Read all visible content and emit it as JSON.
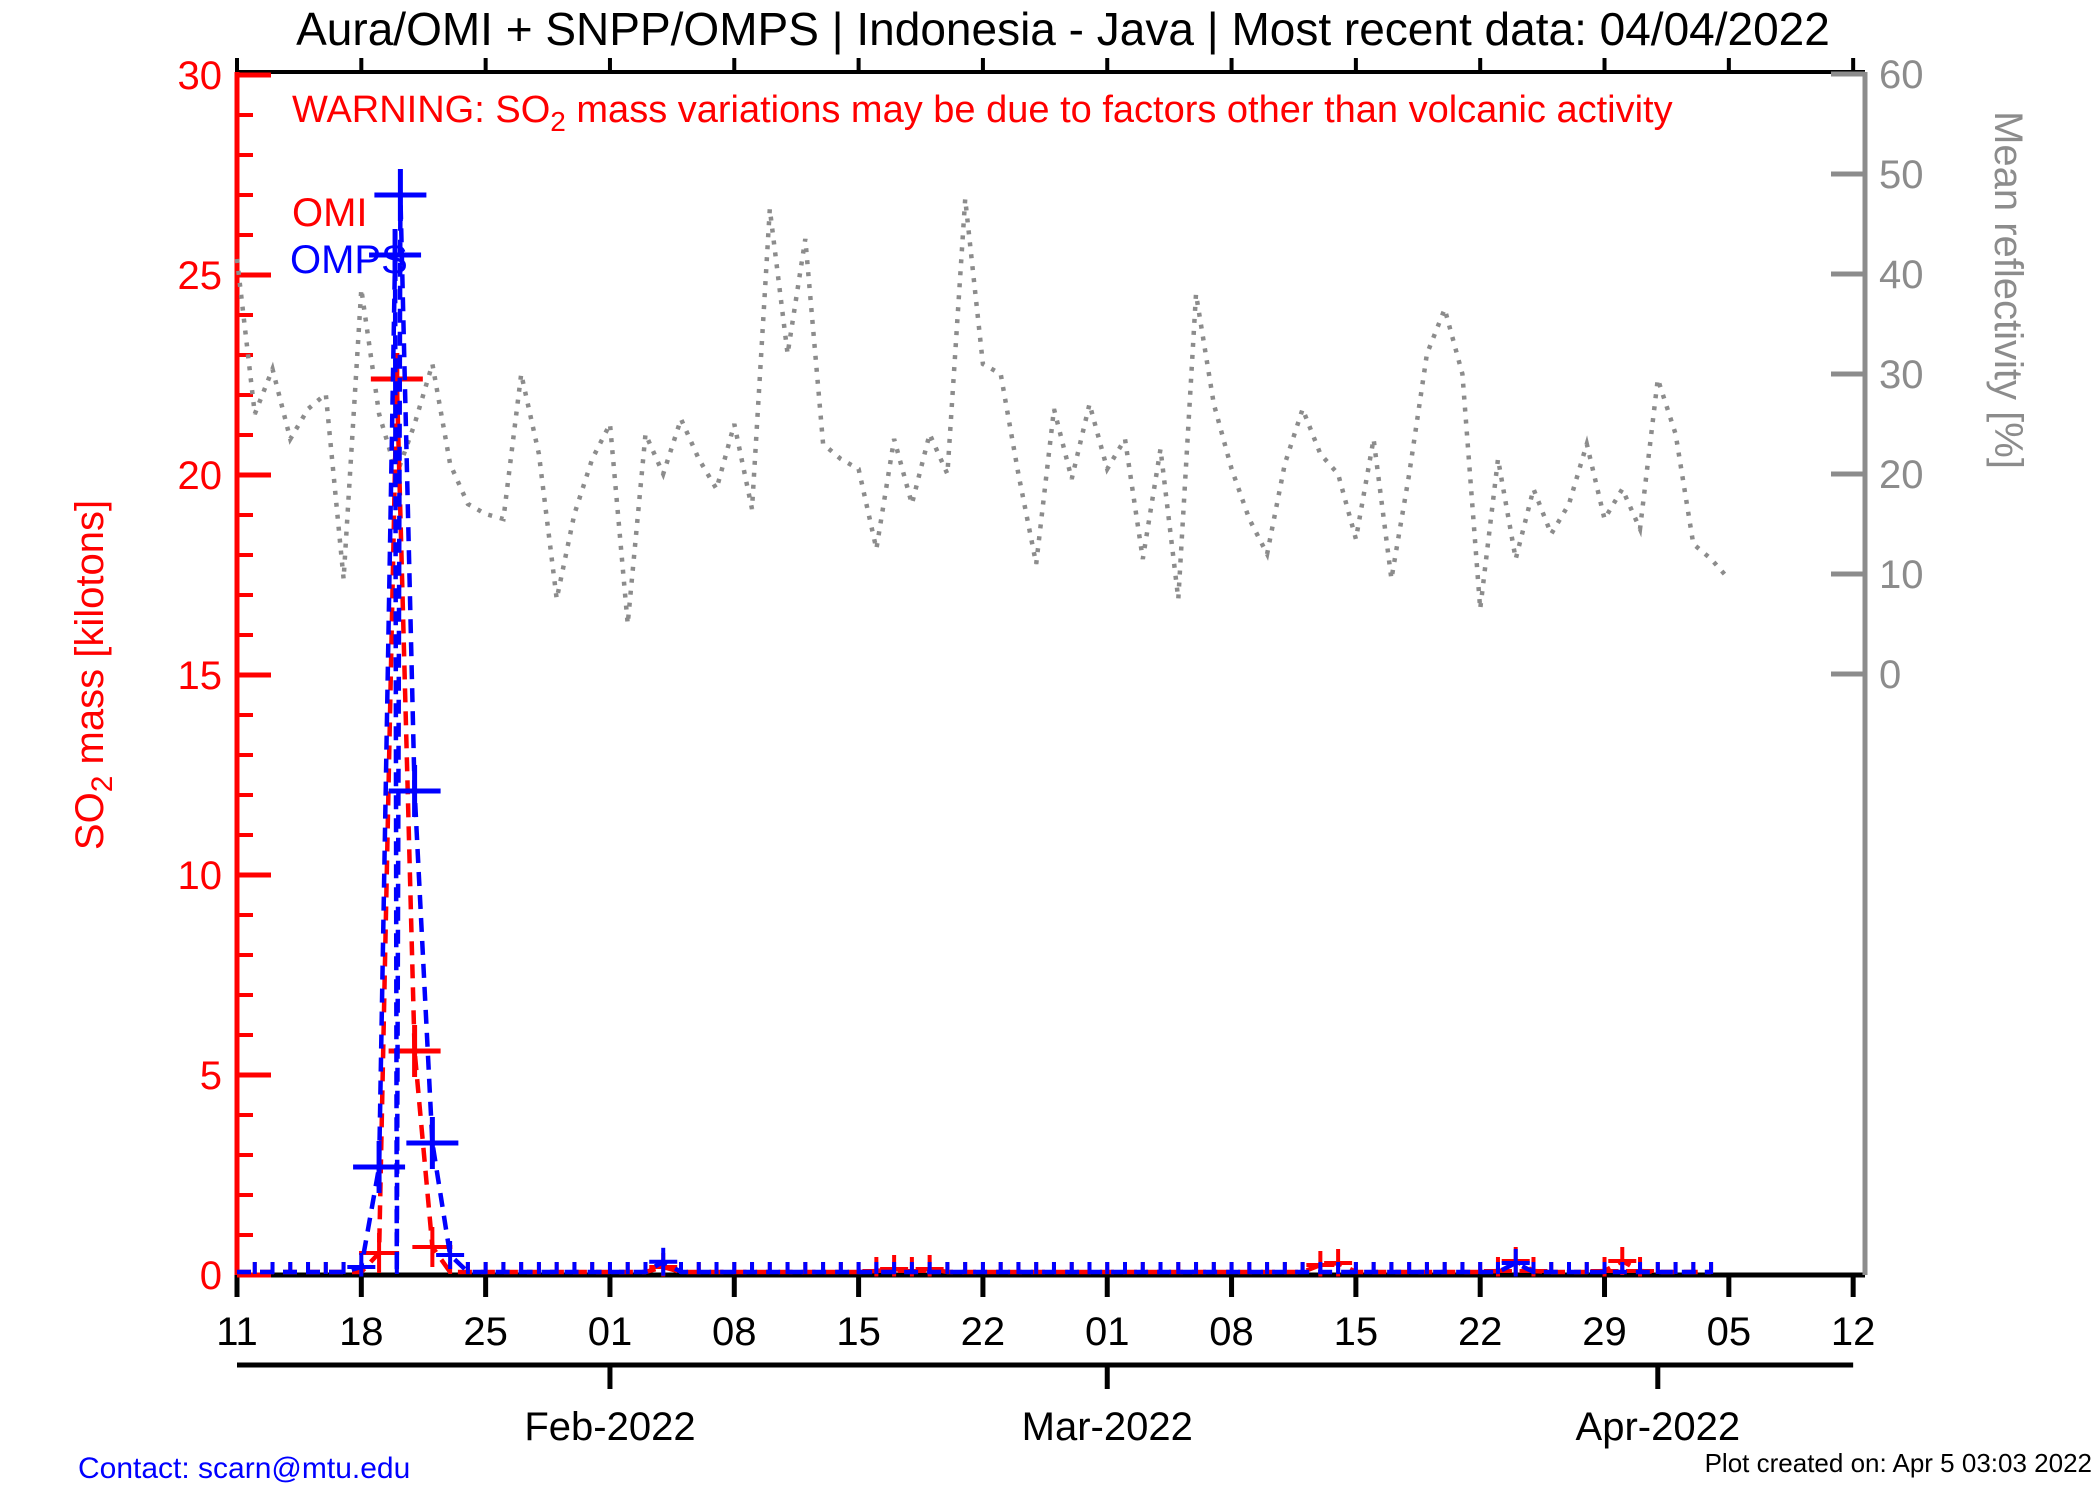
{
  "title": "Aura/OMI + SNPP/OMPS | Indonesia - Java | Most recent data: 04/04/2022",
  "warning": {
    "pre": "WARNING: SO",
    "sub": "2",
    "post": " mass variations may be due to factors other than volcanic activity",
    "color": "#ff0000"
  },
  "legend": {
    "omi_label": "OMI",
    "omps_label": "OMPS",
    "omi_color": "#ff0000",
    "omps_color": "#0000ff"
  },
  "left_axis": {
    "label_pre": "SO",
    "label_sub": "2",
    "label_post": " mass [kilotons]",
    "color": "#ff0000",
    "min": 0,
    "max": 30,
    "major_step": 5,
    "minor_step": 1,
    "tick_labels": [
      "0",
      "5",
      "10",
      "15",
      "20",
      "25",
      "30"
    ]
  },
  "right_axis": {
    "label": "Mean reflectivity [%]",
    "color": "#8c8c8c",
    "min": 0,
    "max": 60,
    "major_step": 10,
    "tick_labels": [
      "0",
      "10",
      "20",
      "30",
      "40",
      "50",
      "60"
    ]
  },
  "x_axis": {
    "weekly_labels": [
      "11",
      "18",
      "25",
      "01",
      "08",
      "15",
      "22",
      "01",
      "08",
      "15",
      "22",
      "29",
      "05",
      "12"
    ],
    "month_labels": [
      "Feb-2022",
      "Mar-2022",
      "Apr-2022"
    ]
  },
  "footer": {
    "contact": "Contact: scarn@mtu.edu",
    "created": "Plot created on: Apr 5 03:03 2022"
  },
  "chart_data": {
    "type": "line",
    "start_date": "2022-01-11",
    "end_date": "2022-04-04",
    "xlim_days": [
      0,
      91
    ],
    "ylim_left_kilotons": [
      0,
      30
    ],
    "ylim_right_percent": [
      0,
      60
    ],
    "grid": false,
    "x_weekly_tick_day_indices": [
      0,
      7,
      14,
      21,
      28,
      35,
      42,
      49,
      56,
      63,
      70,
      77,
      84,
      91
    ],
    "month_tick_day_indices": [
      21,
      49,
      80
    ],
    "series": [
      {
        "name": "Mean reflectivity",
        "unit": "%",
        "axis": "right",
        "style": "dotted",
        "color": "#8c8c8c",
        "daily_values": [
          41.5,
          26,
          30.5,
          23.5,
          26.5,
          28,
          9.5,
          38.5,
          26,
          20,
          25,
          31,
          21,
          17,
          16,
          15.5,
          30,
          22,
          7.5,
          16,
          21.5,
          25,
          5,
          24,
          20,
          25.5,
          21.5,
          18.5,
          25,
          16.5,
          46.5,
          32,
          43.5,
          23,
          21.5,
          20.5,
          12.5,
          23.5,
          17,
          24,
          20,
          47.5,
          31,
          30,
          20,
          11,
          26.5,
          19.5,
          27,
          20.5,
          23.5,
          11.5,
          22.5,
          7.5,
          38,
          27,
          20.5,
          15.5,
          12,
          21,
          26.5,
          22,
          20,
          13.5,
          23.5,
          9.5,
          20,
          32,
          36.5,
          30,
          6.5,
          21.5,
          11.5,
          18.5,
          14,
          17,
          23,
          15.5,
          18.5,
          14.5,
          29.5,
          24,
          13,
          11.5,
          9.5
        ]
      },
      {
        "name": "OMI SO2 mass",
        "unit": "kilotons",
        "axis": "left",
        "style": "dashed",
        "color": "#ff0000",
        "marker": "plus",
        "baseline_value": 0,
        "nonzero_points": [
          {
            "day": 8,
            "value": 0.55
          },
          {
            "day": 9,
            "value": 22.4
          },
          {
            "day": 10,
            "value": 5.6
          },
          {
            "day": 11,
            "value": 0.7
          },
          {
            "day": 24,
            "value": 0.2
          },
          {
            "day": 36,
            "value": 0.1
          },
          {
            "day": 37,
            "value": 0.15
          },
          {
            "day": 38,
            "value": 0.1
          },
          {
            "day": 39,
            "value": 0.15
          },
          {
            "day": 61,
            "value": 0.25
          },
          {
            "day": 62,
            "value": 0.3
          },
          {
            "day": 71,
            "value": 0.1
          },
          {
            "day": 72,
            "value": 0.35
          },
          {
            "day": 73,
            "value": 0.1
          },
          {
            "day": 77,
            "value": 0.1
          },
          {
            "day": 78,
            "value": 0.35
          },
          {
            "day": 79,
            "value": 0.1
          }
        ]
      },
      {
        "name": "OMPS SO2 mass",
        "unit": "kilotons",
        "axis": "left",
        "style": "dashed",
        "color": "#0000ff",
        "marker": "plus",
        "baseline_value": 0,
        "nonzero_points": [
          {
            "day": 7,
            "value": 0.2
          },
          {
            "day": 8,
            "value": 2.7
          },
          {
            "day": 8.9,
            "value": 25.5
          },
          {
            "day": 9.2,
            "value": 27.0
          },
          {
            "day": 10,
            "value": 12.1
          },
          {
            "day": 11,
            "value": 3.3
          },
          {
            "day": 12,
            "value": 0.5
          },
          {
            "day": 24,
            "value": 0.33
          },
          {
            "day": 72,
            "value": 0.3
          }
        ]
      }
    ]
  }
}
